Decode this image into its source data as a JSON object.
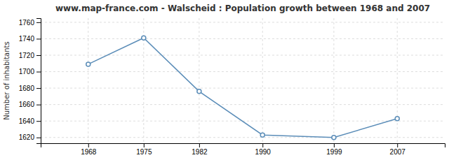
{
  "chart_data": {
    "type": "line",
    "title": "www.map-france.com - Walscheid : Population growth between 1968 and 2007",
    "ylabel": "Number of inhabitants",
    "x": [
      1968,
      1975,
      1982,
      1990,
      1999,
      2007
    ],
    "values": [
      1709,
      1741,
      1676,
      1623,
      1620,
      1643
    ],
    "xlim": [
      1962,
      2013
    ],
    "ylim": [
      1613,
      1765
    ],
    "xticks": [
      1968,
      1975,
      1982,
      1990,
      1999,
      2007
    ],
    "yticks": [
      1620,
      1640,
      1660,
      1680,
      1700,
      1720,
      1740,
      1760
    ],
    "color": "#5b8db8",
    "marker": "circle",
    "grid": true
  }
}
